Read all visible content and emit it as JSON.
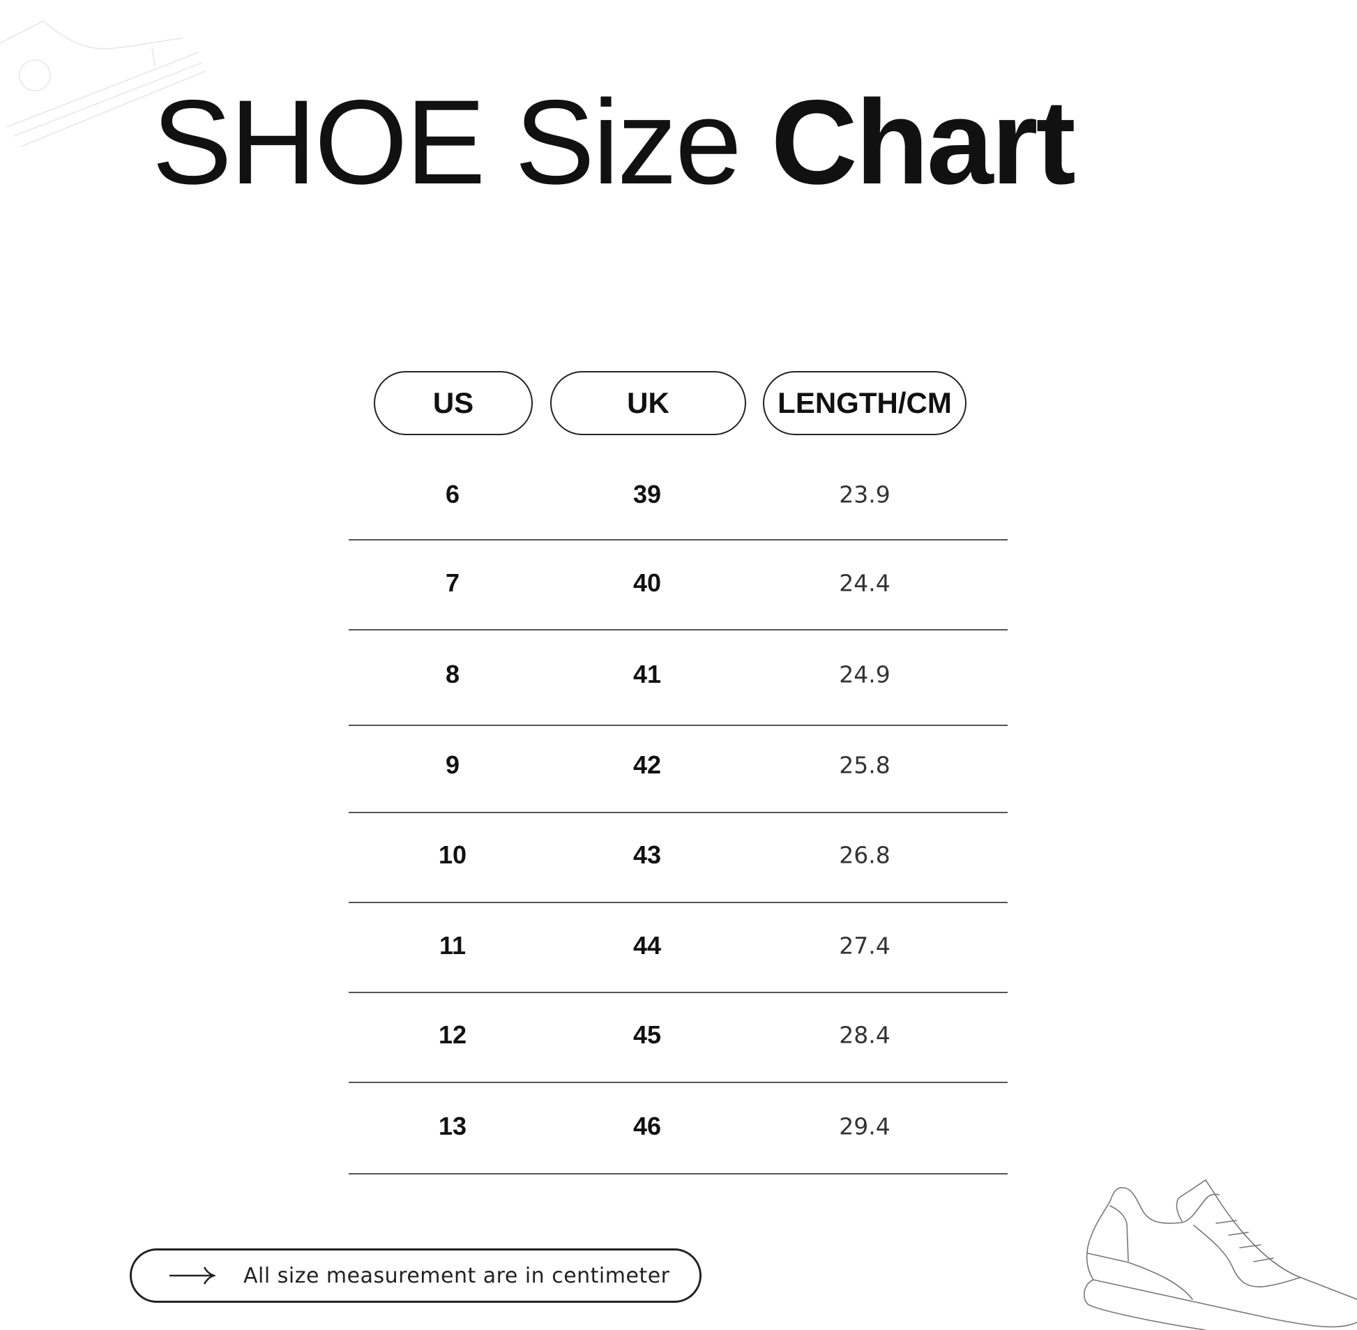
{
  "title": {
    "light": "SHOE Size ",
    "bold": "Chart"
  },
  "columns": [
    "US",
    "UK",
    "LENGTH/CM"
  ],
  "rows": [
    {
      "us": "6",
      "uk": "39",
      "length": "23.9"
    },
    {
      "us": "7",
      "uk": "40",
      "length": "24.4"
    },
    {
      "us": "8",
      "uk": "41",
      "length": "24.9"
    },
    {
      "us": "9",
      "uk": "42",
      "length": "25.8"
    },
    {
      "us": "10",
      "uk": "43",
      "length": "26.8"
    },
    {
      "us": "11",
      "uk": "44",
      "length": "27.4"
    },
    {
      "us": "12",
      "uk": "45",
      "length": "28.4"
    },
    {
      "us": "13",
      "uk": "46",
      "length": "29.4"
    }
  ],
  "note": {
    "icon": "arrow-right-icon",
    "text": "All size measurement are in centimeter"
  },
  "decorations": [
    "sneaker-outline-icon",
    "sneaker-outline-icon"
  ]
}
